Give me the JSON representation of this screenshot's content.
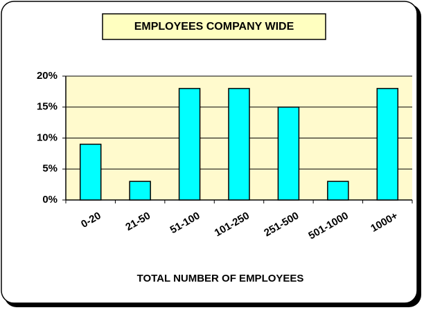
{
  "chart_data": {
    "type": "bar",
    "title": "EMPLOYEES COMPANY WIDE",
    "x_label": "TOTAL NUMBER OF EMPLOYEES",
    "categories": [
      "0-20",
      "21-50",
      "51-100",
      "101-250",
      "251-500",
      "501-1000",
      "1000+"
    ],
    "values": [
      9,
      3,
      18,
      18,
      15,
      3,
      18
    ],
    "color": "#00ffff",
    "ylim": [
      0,
      20
    ],
    "yticks": [
      {
        "value": 0,
        "label": "0%"
      },
      {
        "value": 5,
        "label": "5%"
      },
      {
        "value": 10,
        "label": "10%"
      },
      {
        "value": 15,
        "label": "15%"
      },
      {
        "value": 20,
        "label": "20%"
      }
    ],
    "grid": true
  }
}
